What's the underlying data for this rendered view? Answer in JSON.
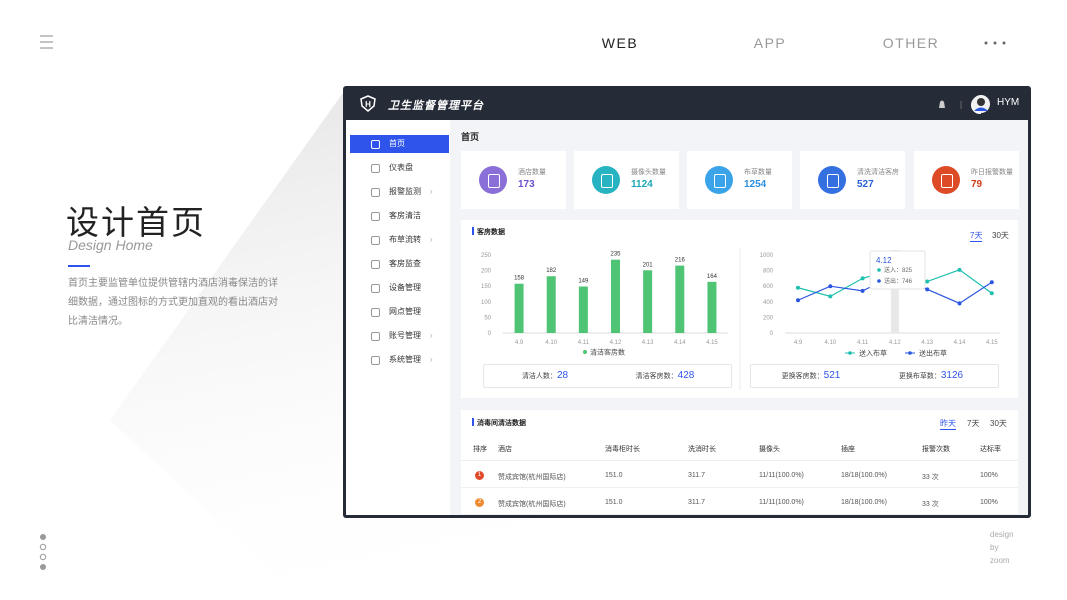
{
  "nav": {
    "items": [
      "WEB",
      "APP",
      "OTHER"
    ]
  },
  "intro": {
    "title": "设计首页",
    "subtitle": "Design Home",
    "description": "首页主要监管单位提供管辖内酒店消毒保洁的详细数据，通过图标的方式更加直观的看出酒店对比清洁情况。"
  },
  "credit": [
    "design",
    "by",
    "zoom"
  ],
  "app": {
    "brand": "卫生监督管理平台",
    "user": "HYM",
    "menu": [
      {
        "label": "首页",
        "has_children": false
      },
      {
        "label": "仪表盘",
        "has_children": false
      },
      {
        "label": "报警监测",
        "has_children": true
      },
      {
        "label": "客房清洁",
        "has_children": false
      },
      {
        "label": "布草流转",
        "has_children": true
      },
      {
        "label": "客房监查",
        "has_children": false
      },
      {
        "label": "设备管理",
        "has_children": false
      },
      {
        "label": "网点管理",
        "has_children": false
      },
      {
        "label": "账号管理",
        "has_children": true
      },
      {
        "label": "系统管理",
        "has_children": true
      }
    ],
    "page_title": "首页",
    "stats": [
      {
        "label": "酒店数量",
        "value": 173
      },
      {
        "label": "摄像头数量",
        "value": 1124
      },
      {
        "label": "布草数量",
        "value": 1254
      },
      {
        "label": "清洗清洁客房",
        "value": 527
      },
      {
        "label": "昨日报警数量",
        "value": 79
      }
    ],
    "room_panel": {
      "title": "客房数据",
      "tabs": [
        "7天",
        "30天"
      ],
      "summary": [
        {
          "label": "清洁人数：",
          "value": 28
        },
        {
          "label": "清洁客房数：",
          "value": 428
        },
        {
          "label": "更换客房数：",
          "value": 521
        },
        {
          "label": "更换布草数：",
          "value": 3126
        }
      ]
    },
    "table_panel": {
      "title": "消毒间清洁数据",
      "tabs": [
        "昨天",
        "7天",
        "30天"
      ],
      "columns": [
        "排序",
        "酒店",
        "消毒柜时长",
        "洗消时长",
        "摄像头",
        "插座",
        "报警次数",
        "达标率"
      ],
      "rows": [
        [
          "1",
          "赞成宾馆(杭州国际店)",
          "151.0",
          "311.7",
          "11/11(100.0%)",
          "18/18(100.0%)",
          "33 次",
          "100%"
        ],
        [
          "2",
          "赞成宾馆(杭州国际店)",
          "151.0",
          "311.7",
          "11/11(100.0%)",
          "18/18(100.0%)",
          "33 次",
          "100%"
        ]
      ]
    }
  },
  "chart_data": [
    {
      "type": "bar",
      "categories": [
        "4.9",
        "4.10",
        "4.11",
        "4.12",
        "4.13",
        "4.14",
        "4.15"
      ],
      "series": [
        {
          "name": "清洁客房数",
          "color": "#4fc475",
          "values": [
            158,
            182,
            149,
            235,
            201,
            216,
            164
          ]
        }
      ],
      "ylim": [
        0,
        250
      ],
      "yticks": [
        0,
        50,
        100,
        150,
        200,
        250
      ]
    },
    {
      "type": "line",
      "categories": [
        "4.9",
        "4.10",
        "4.11",
        "4.12",
        "4.13",
        "4.14",
        "4.15"
      ],
      "series": [
        {
          "name": "送入布草",
          "color": "#1dbfae",
          "values": [
            580,
            470,
            700,
            825,
            660,
            810,
            510
          ]
        },
        {
          "name": "送出布草",
          "color": "#2a55e0",
          "values": [
            420,
            600,
            540,
            746,
            560,
            380,
            650
          ]
        }
      ],
      "ylim": [
        0,
        1000
      ],
      "yticks": [
        0,
        200,
        400,
        600,
        800,
        1000
      ],
      "tooltip": {
        "title": "4.12",
        "items": [
          "送入：825",
          "送出：746"
        ]
      }
    }
  ]
}
